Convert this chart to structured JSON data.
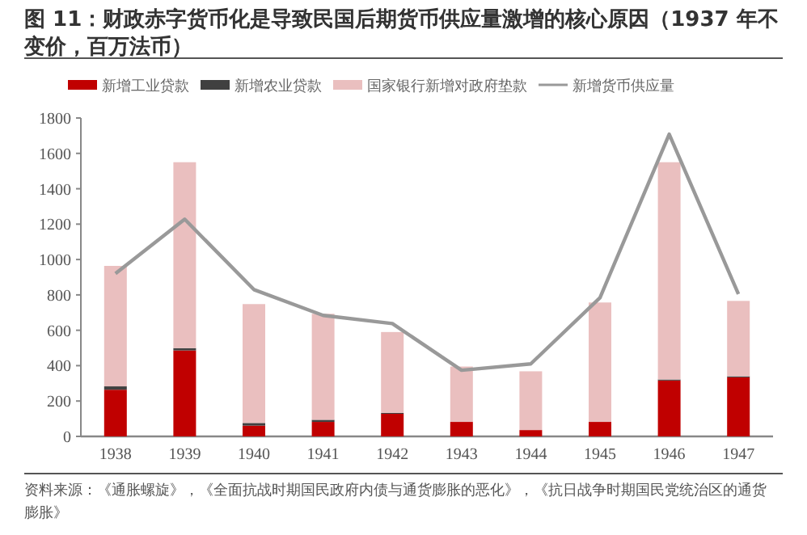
{
  "chart_data": {
    "type": "bar",
    "stacked": true,
    "title": "图 11：财政赤字货币化是导致民国后期货币供应量激增的核心原因（1937 年不变价，百万法币）",
    "annotations": [
      "资料来源：《通胀螺旋》，《全面抗战时期国民政府内债与通货膨胀的恶化》，《抗日战争时期国民党统治区的通货膨胀》"
    ],
    "categories": [
      "1938",
      "1939",
      "1940",
      "1941",
      "1942",
      "1943",
      "1944",
      "1945",
      "1946",
      "1947"
    ],
    "series": [
      {
        "name": "新增工业贷款",
        "color": "#c00000",
        "values": [
          264,
          486,
          61,
          82,
          128,
          82,
          36,
          82,
          316,
          334
        ]
      },
      {
        "name": "新增农业贷款",
        "color": "#404040",
        "values": [
          19,
          13,
          15,
          12,
          5,
          null,
          null,
          null,
          6,
          6
        ]
      },
      {
        "name": "国家银行新增对政府垫款",
        "color": "#eabfbf",
        "values": [
          681,
          1051,
          672,
          599,
          457,
          313,
          332,
          675,
          1228,
          426
        ]
      },
      {
        "name": "新增货币供应量",
        "type": "line",
        "color": "#999999",
        "values": [
          921,
          1228,
          830,
          684,
          638,
          374,
          410,
          784,
          1708,
          805
        ]
      }
    ],
    "ylim": [
      0,
      1800
    ],
    "yticks": [
      0,
      200,
      400,
      600,
      800,
      1000,
      1200,
      1400,
      1600,
      1800
    ],
    "legend": "top",
    "grid": false
  }
}
